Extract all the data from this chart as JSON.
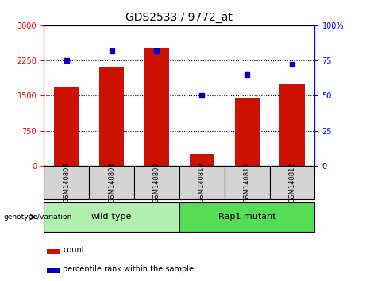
{
  "title": "GDS2533 / 9772_at",
  "samples": [
    "GSM140805",
    "GSM140808",
    "GSM140809",
    "GSM140810",
    "GSM140811",
    "GSM140812"
  ],
  "counts": [
    1700,
    2100,
    2500,
    250,
    1450,
    1750
  ],
  "percentiles": [
    75,
    82,
    82,
    50,
    65,
    72
  ],
  "wt_color": "#b2f0b2",
  "rap_color": "#55dd55",
  "bar_color": "#cc1100",
  "dot_color": "#0000cc",
  "left_ylim": [
    0,
    3000
  ],
  "right_ylim": [
    0,
    100
  ],
  "left_yticks": [
    0,
    750,
    1500,
    2250,
    3000
  ],
  "right_yticks": [
    0,
    25,
    50,
    75,
    100
  ],
  "right_yticklabels": [
    "0",
    "25",
    "50",
    "75",
    "100%"
  ],
  "hlines": [
    750,
    1500,
    2250
  ],
  "sample_box_color": "#d3d3d3",
  "group_label_text": "genotype/variation",
  "wt_label": "wild-type",
  "rap_label": "Rap1 mutant",
  "legend_count_label": "count",
  "legend_pct_label": "percentile rank within the sample",
  "title_fontsize": 10,
  "tick_fontsize": 7,
  "sample_fontsize": 6,
  "group_fontsize": 8,
  "legend_fontsize": 7
}
